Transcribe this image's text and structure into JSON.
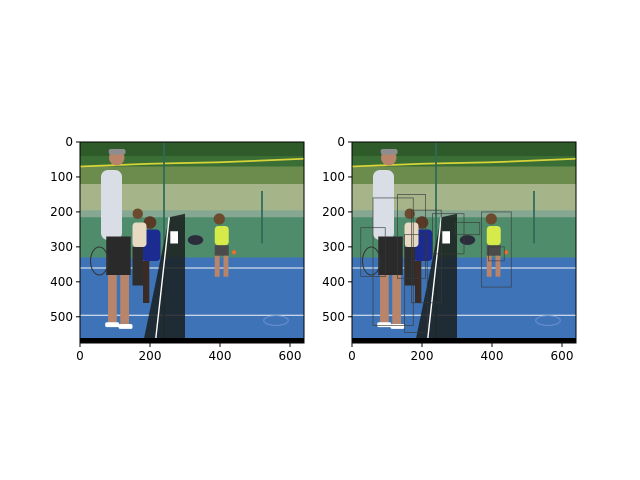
{
  "chart_data": [
    {
      "type": "image",
      "panel": "left",
      "title": "",
      "xlabel": "",
      "ylabel": "",
      "xlim": [
        0,
        640
      ],
      "ylim": [
        575,
        0
      ],
      "xticks": [
        0,
        200,
        400,
        600
      ],
      "yticks": [
        0,
        100,
        200,
        300,
        400,
        500
      ],
      "image_description": "tennis court photo: adult coach holding racket beside net with children, one child in yellow shirt hitting ball",
      "boxes": []
    },
    {
      "type": "image",
      "panel": "right",
      "title": "",
      "xlabel": "",
      "ylabel": "",
      "xlim": [
        0,
        640
      ],
      "ylim": [
        575,
        0
      ],
      "xticks": [
        0,
        200,
        400,
        600
      ],
      "yticks": [
        0,
        100,
        200,
        300,
        400,
        500
      ],
      "image_description": "same tennis court photo overlaid with detection bounding boxes",
      "boxes": [
        {
          "x0": 60,
          "y0": 160,
          "x1": 175,
          "y1": 525
        },
        {
          "x0": 25,
          "y0": 245,
          "x1": 95,
          "y1": 385
        },
        {
          "x0": 130,
          "y0": 150,
          "x1": 210,
          "y1": 390
        },
        {
          "x0": 170,
          "y0": 195,
          "x1": 255,
          "y1": 460
        },
        {
          "x0": 230,
          "y0": 205,
          "x1": 320,
          "y1": 320
        },
        {
          "x0": 295,
          "y0": 230,
          "x1": 365,
          "y1": 265
        },
        {
          "x0": 370,
          "y0": 200,
          "x1": 455,
          "y1": 415
        },
        {
          "x0": 390,
          "y0": 300,
          "x1": 435,
          "y1": 340
        },
        {
          "x0": 150,
          "y0": 265,
          "x1": 215,
          "y1": 545
        }
      ]
    }
  ],
  "colors": {
    "sky": "#c3dcf0",
    "trees": "#2f5a2a",
    "fence_top": "#d7d43a",
    "court_green": "#4f8c6c",
    "court_blue": "#3e73b7",
    "court_line": "#f2f4f6",
    "net": "#1a1f1f",
    "box_stroke": "#3a3a3a"
  }
}
